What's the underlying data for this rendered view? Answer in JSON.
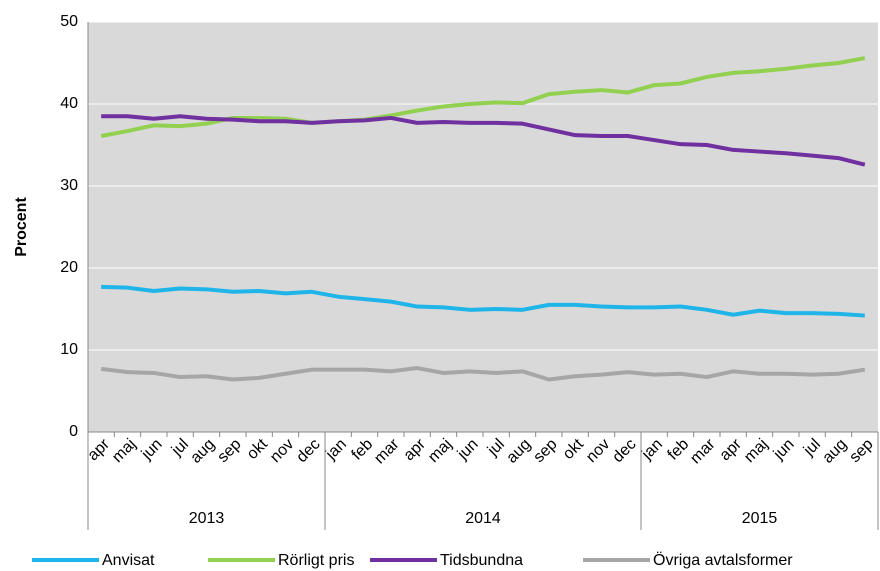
{
  "chart_data": {
    "type": "line",
    "y_label": "Procent",
    "categories": [
      "apr",
      "maj",
      "jun",
      "jul",
      "aug",
      "sep",
      "okt",
      "nov",
      "dec",
      "jan",
      "feb",
      "mar",
      "apr",
      "maj",
      "jun",
      "jul",
      "aug",
      "sep",
      "okt",
      "nov",
      "dec",
      "jan",
      "feb",
      "mar",
      "apr",
      "maj",
      "jun",
      "jul",
      "aug",
      "sep"
    ],
    "groups": [
      {
        "label": "2013",
        "span": 9
      },
      {
        "label": "2014",
        "span": 12
      },
      {
        "label": "2015",
        "span": 9
      }
    ],
    "series": [
      {
        "name": "Anvisat",
        "color": "#1fb5e8",
        "values": [
          17.7,
          17.6,
          17.2,
          17.5,
          17.4,
          17.1,
          17.2,
          16.9,
          17.1,
          16.5,
          16.2,
          15.9,
          15.3,
          15.2,
          14.9,
          15.0,
          14.9,
          15.5,
          15.5,
          15.3,
          15.2,
          15.2,
          15.3,
          14.9,
          14.3,
          14.8,
          14.5,
          14.5,
          14.4,
          14.2
        ]
      },
      {
        "name": "Rörligt pris",
        "color": "#92d050",
        "values": [
          36.1,
          36.7,
          37.4,
          37.3,
          37.6,
          38.3,
          38.3,
          38.2,
          37.7,
          37.9,
          38.1,
          38.6,
          39.2,
          39.7,
          40.0,
          40.2,
          40.1,
          41.2,
          41.5,
          41.7,
          41.4,
          42.3,
          42.5,
          43.3,
          43.8,
          44.0,
          44.3,
          44.7,
          45.0,
          45.6
        ]
      },
      {
        "name": "Tidsbundna",
        "color": "#7030a0",
        "values": [
          38.5,
          38.5,
          38.2,
          38.5,
          38.2,
          38.1,
          37.9,
          37.9,
          37.7,
          37.9,
          38.0,
          38.3,
          37.7,
          37.8,
          37.7,
          37.7,
          37.6,
          36.9,
          36.2,
          36.1,
          36.1,
          35.6,
          35.1,
          35.0,
          34.4,
          34.2,
          34.0,
          33.7,
          33.4,
          32.6
        ]
      },
      {
        "name": "Övriga avtalsformer",
        "color": "#a6a6a6",
        "values": [
          7.7,
          7.3,
          7.2,
          6.7,
          6.8,
          6.4,
          6.6,
          7.1,
          7.6,
          7.6,
          7.6,
          7.4,
          7.8,
          7.2,
          7.4,
          7.2,
          7.4,
          6.4,
          6.8,
          7.0,
          7.3,
          7.0,
          7.1,
          6.7,
          7.4,
          7.1,
          7.1,
          7.0,
          7.1,
          7.6
        ]
      }
    ],
    "ylim": [
      0,
      50
    ],
    "yticks": [
      0,
      10,
      20,
      30,
      40,
      50
    ],
    "grid": true,
    "legend": "bottom"
  }
}
